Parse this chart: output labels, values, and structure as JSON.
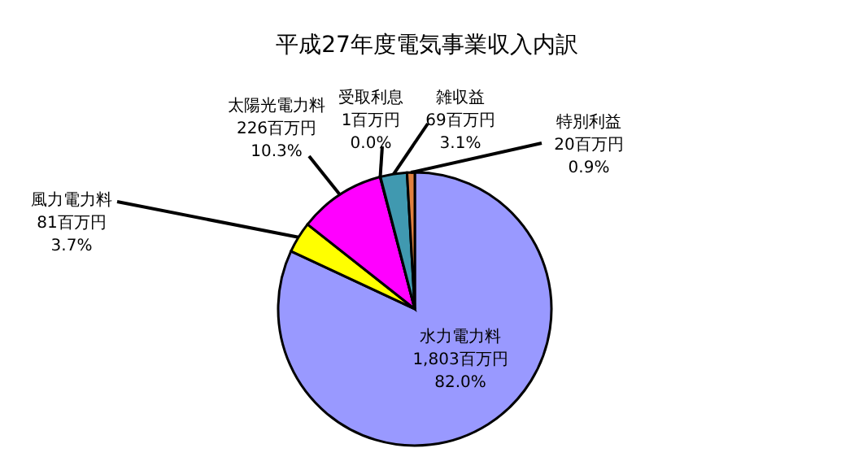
{
  "chart_data": {
    "type": "pie",
    "title": "平成27年度電気事業収入内訳",
    "categories": [
      "水力電力料",
      "風力電力料",
      "太陽光電力料",
      "受取利息",
      "雑収益",
      "特別利益"
    ],
    "values": [
      1803,
      81,
      226,
      1,
      69,
      20
    ],
    "value_labels": [
      "1,803百万円\n82.0%",
      "81百万円\n3.7%",
      "226百万円\n10.3%",
      "1百万円\n0.0%",
      "69百万円\n3.1%",
      "20百万円\n0.9%"
    ],
    "colors": [
      "#9999ff",
      "#ffff00",
      "#ff00ff",
      "#000080",
      "#4099b0",
      "#e08040"
    ]
  }
}
